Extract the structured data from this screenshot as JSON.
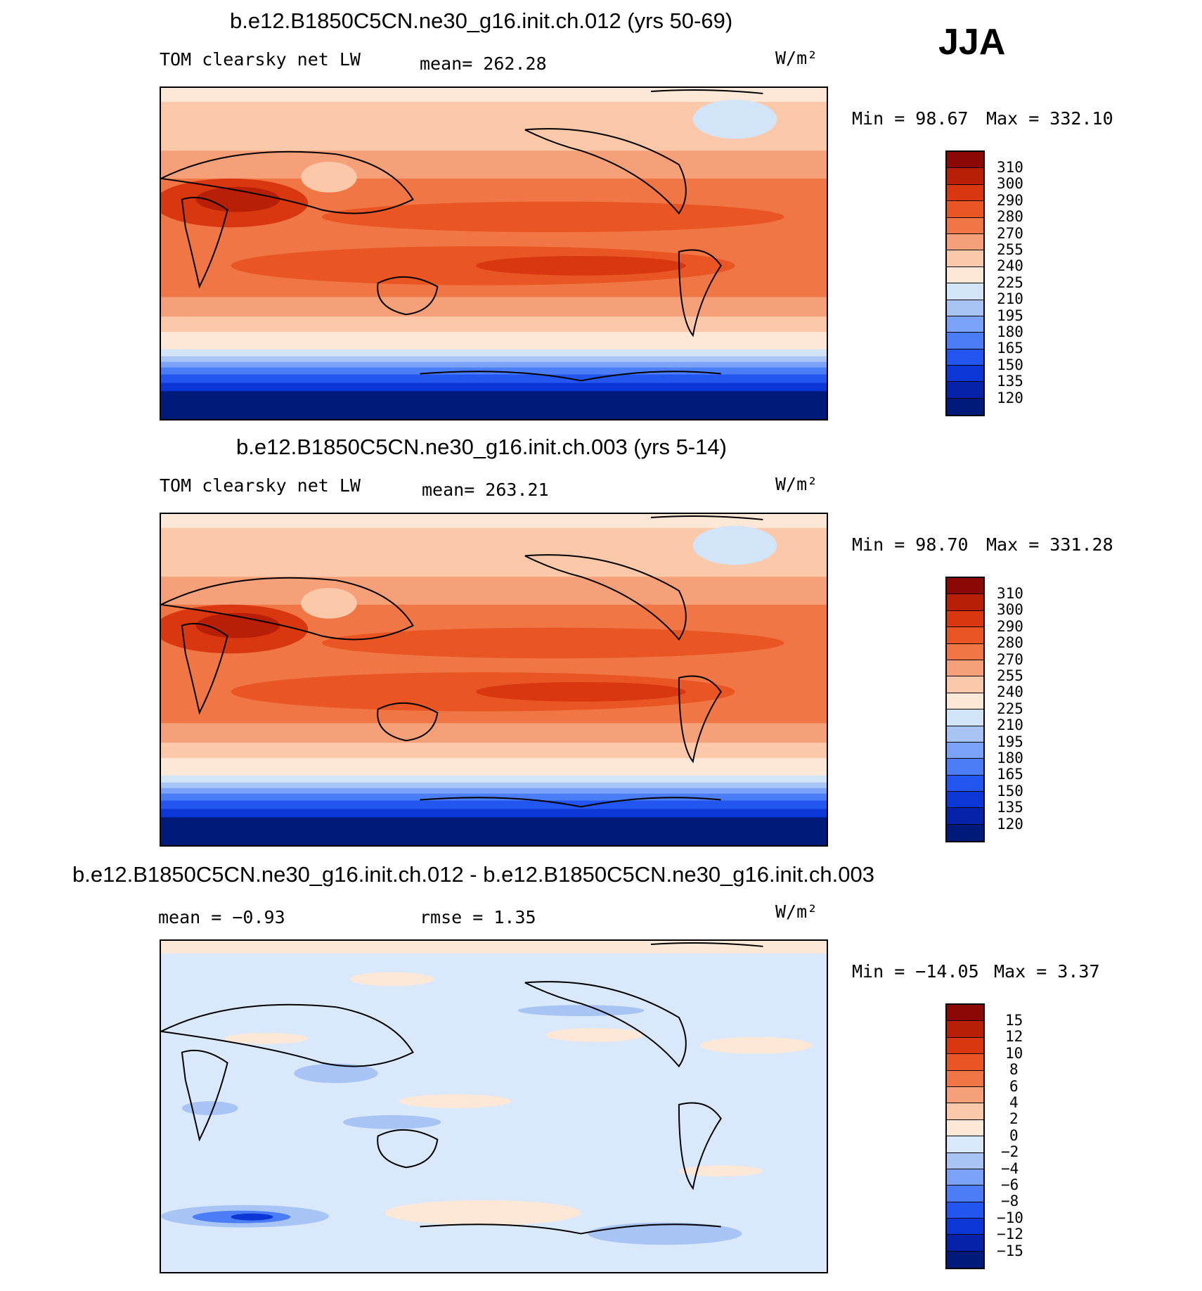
{
  "season": "JJA",
  "colors": {
    "abs_scale": [
      "#001a7a",
      "#0622a8",
      "#0a37d6",
      "#2356f0",
      "#4b7ef6",
      "#7aa2f7",
      "#a8c4f5",
      "#d2e4f8",
      "#fde7d6",
      "#fbc8aa",
      "#f6a07a",
      "#f07645",
      "#e95523",
      "#d83710",
      "#b81f06",
      "#8b0805"
    ],
    "diff_scale": [
      "#001a7a",
      "#0622a8",
      "#0a37d6",
      "#2356f0",
      "#4b7ef6",
      "#7aa2f7",
      "#a8c4f5",
      "#d9e8fb",
      "#fde7d6",
      "#fbc8aa",
      "#f6a07a",
      "#f07645",
      "#e95523",
      "#d83710",
      "#b81f06",
      "#8b0805"
    ],
    "coast": "#000000"
  },
  "chart_data": [
    {
      "type": "heatmap",
      "title": "b.e12.B1850C5CN.ne30_g16.init.ch.012 (yrs 50-69)",
      "variable": "TOM clearsky net LW",
      "mean_text": "mean= 262.28",
      "units": "W/m²",
      "min_text": "Min =   98.67",
      "max_text": "Max = 332.10",
      "min": 98.67,
      "max": 332.1,
      "mean": 262.28,
      "colorbar_levels": [
        "310",
        "300",
        "290",
        "280",
        "270",
        "255",
        "240",
        "225",
        "210",
        "195",
        "180",
        "165",
        "150",
        "135",
        "120"
      ]
    },
    {
      "type": "heatmap",
      "title": "b.e12.B1850C5CN.ne30_g16.init.ch.003 (yrs 5-14)",
      "variable": "TOM clearsky net LW",
      "mean_text": "mean= 263.21",
      "units": "W/m²",
      "min_text": "Min =   98.70",
      "max_text": "Max = 331.28",
      "min": 98.7,
      "max": 331.28,
      "mean": 263.21,
      "colorbar_levels": [
        "310",
        "300",
        "290",
        "280",
        "270",
        "255",
        "240",
        "225",
        "210",
        "195",
        "180",
        "165",
        "150",
        "135",
        "120"
      ]
    },
    {
      "type": "heatmap",
      "title": "b.e12.B1850C5CN.ne30_g16.init.ch.012 - b.e12.B1850C5CN.ne30_g16.init.ch.003",
      "mean_text": "mean =   −0.93",
      "rmse_text": "rmse =    1.35",
      "units": "W/m²",
      "min_text": "Min = −14.05",
      "max_text": "Max =    3.37",
      "min": -14.05,
      "max": 3.37,
      "mean": -0.93,
      "rmse": 1.35,
      "colorbar_levels": [
        "15",
        "12",
        "10",
        "8",
        "6",
        "4",
        "2",
        "0",
        "−2",
        "−4",
        "−6",
        "−8",
        "−10",
        "−12",
        "−15"
      ]
    }
  ]
}
